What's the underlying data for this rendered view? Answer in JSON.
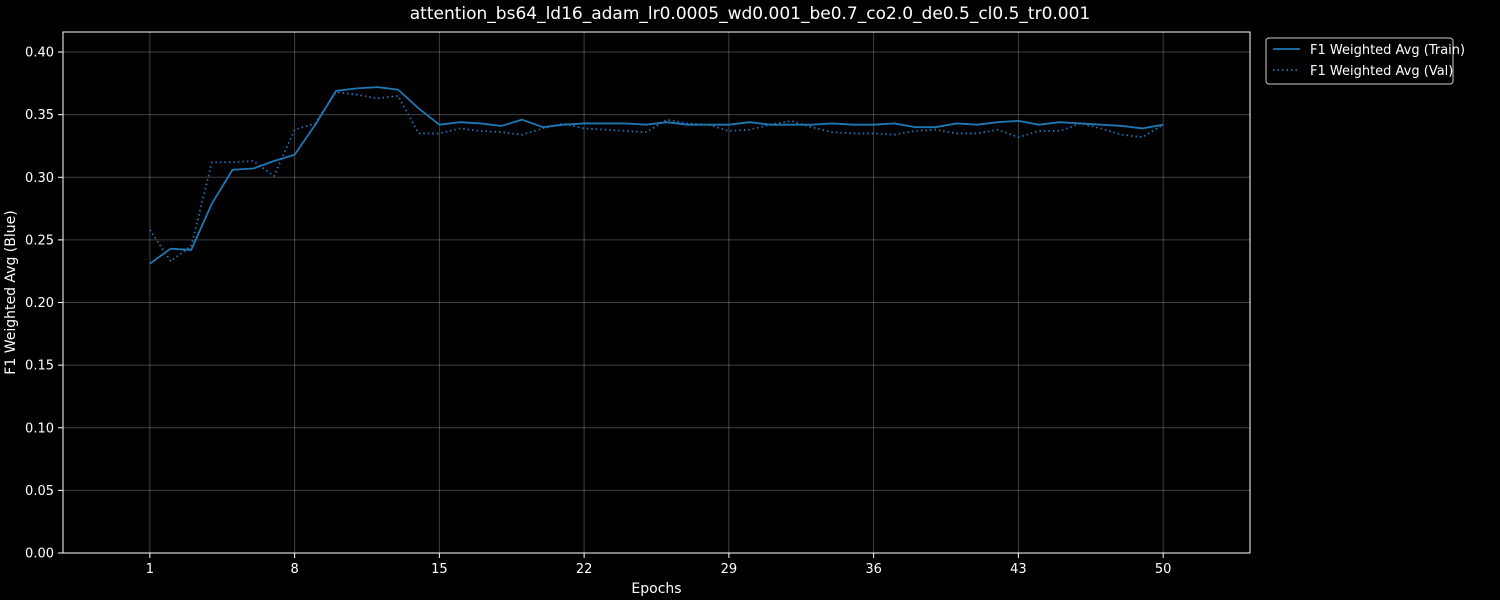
{
  "chart_data": {
    "type": "line",
    "title": "attention_bs64_ld16_adam_lr0.0005_wd0.001_be0.7_co2.0_de0.5_cl0.5_tr0.001",
    "xlabel": "Epochs",
    "ylabel": "F1 Weighted Avg (Blue)",
    "xlim": [
      -3.2,
      54.2
    ],
    "ylim": [
      0.0,
      0.416
    ],
    "x_ticks": [
      1,
      8,
      15,
      22,
      29,
      36,
      43,
      50
    ],
    "y_ticks": [
      0.0,
      0.05,
      0.1,
      0.15,
      0.2,
      0.25,
      0.3,
      0.35,
      0.4
    ],
    "grid": true,
    "legend_position": "outside-top-right",
    "background": "#000000",
    "x": [
      1,
      2,
      3,
      4,
      5,
      6,
      7,
      8,
      9,
      10,
      11,
      12,
      13,
      14,
      15,
      16,
      17,
      18,
      19,
      20,
      21,
      22,
      23,
      24,
      25,
      26,
      27,
      28,
      29,
      30,
      31,
      32,
      33,
      34,
      35,
      36,
      37,
      38,
      39,
      40,
      41,
      42,
      43,
      44,
      45,
      46,
      47,
      48,
      49,
      50
    ],
    "series": [
      {
        "name": "F1 Weighted Avg (Train)",
        "color": "#1f77b4",
        "style": "solid",
        "values": [
          0.231,
          0.243,
          0.242,
          0.279,
          0.306,
          0.307,
          0.313,
          0.318,
          0.342,
          0.369,
          0.371,
          0.372,
          0.37,
          0.355,
          0.342,
          0.344,
          0.343,
          0.341,
          0.346,
          0.34,
          0.342,
          0.343,
          0.343,
          0.343,
          0.342,
          0.344,
          0.342,
          0.342,
          0.342,
          0.344,
          0.342,
          0.342,
          0.342,
          0.343,
          0.342,
          0.342,
          0.343,
          0.34,
          0.34,
          0.343,
          0.342,
          0.344,
          0.345,
          0.342,
          0.344,
          0.343,
          0.342,
          0.341,
          0.339,
          0.342
        ]
      },
      {
        "name": "F1 Weighted Avg (Val)",
        "color": "#1f77b4",
        "style": "dotted",
        "values": [
          0.258,
          0.233,
          0.245,
          0.312,
          0.312,
          0.313,
          0.301,
          0.338,
          0.343,
          0.368,
          0.366,
          0.363,
          0.365,
          0.335,
          0.335,
          0.339,
          0.337,
          0.336,
          0.334,
          0.339,
          0.343,
          0.339,
          0.338,
          0.337,
          0.336,
          0.346,
          0.343,
          0.342,
          0.337,
          0.338,
          0.342,
          0.345,
          0.34,
          0.336,
          0.335,
          0.335,
          0.334,
          0.337,
          0.338,
          0.335,
          0.335,
          0.338,
          0.332,
          0.337,
          0.337,
          0.343,
          0.339,
          0.334,
          0.332,
          0.342
        ]
      }
    ]
  }
}
